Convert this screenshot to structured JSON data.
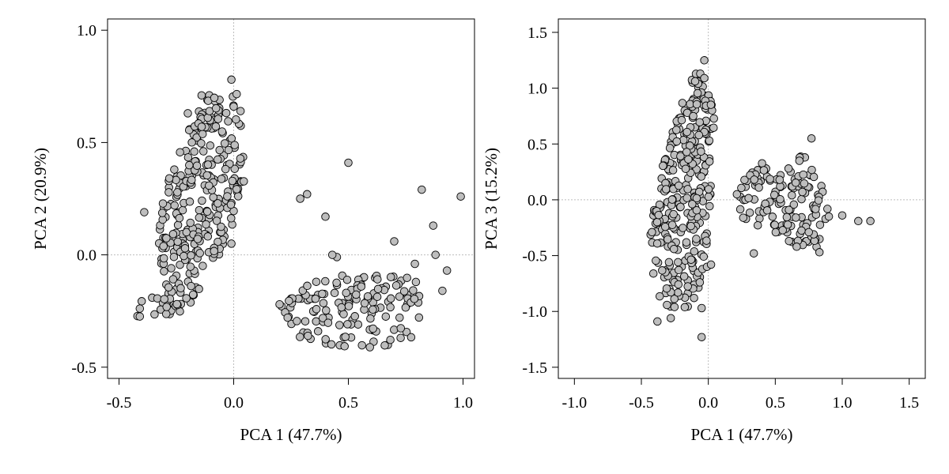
{
  "chart_data": [
    {
      "type": "scatter",
      "xlabel": "PCA 1 (47.7%)",
      "ylabel": "PCA 2 (20.9%)",
      "xlim": [
        -0.55,
        1.05
      ],
      "ylim": [
        -0.55,
        1.05
      ],
      "xticks": [
        -0.5,
        0.0,
        0.5,
        1.0
      ],
      "xtick_labels": [
        "-0.5",
        "0.0",
        "0.5",
        "1.0"
      ],
      "yticks": [
        -0.5,
        0.0,
        0.5,
        1.0
      ],
      "ytick_labels": [
        "-0.5",
        "0.0",
        "0.5",
        "1.0"
      ],
      "reference_lines": {
        "x": 0,
        "y": 0
      },
      "grid": false,
      "marker_fill": "#bebebe",
      "marker_edge": "#000000",
      "clusters": [
        {
          "shape": "polygon",
          "count": 300,
          "seed": 11,
          "region": [
            [
              -0.43,
              -0.28
            ],
            [
              -0.3,
              -0.3
            ],
            [
              -0.18,
              -0.22
            ],
            [
              -0.1,
              -0.05
            ],
            [
              -0.03,
              0.05
            ],
            [
              0.05,
              0.32
            ],
            [
              0.02,
              0.72
            ],
            [
              -0.13,
              0.72
            ],
            [
              -0.2,
              0.55
            ],
            [
              -0.3,
              0.32
            ],
            [
              -0.33,
              0.05
            ],
            [
              -0.3,
              -0.18
            ],
            [
              -0.42,
              -0.2
            ]
          ]
        },
        {
          "shape": "polygon",
          "count": 140,
          "seed": 23,
          "region": [
            [
              0.2,
              -0.2
            ],
            [
              0.33,
              -0.12
            ],
            [
              0.45,
              -0.08
            ],
            [
              0.6,
              -0.08
            ],
            [
              0.75,
              -0.1
            ],
            [
              0.85,
              -0.12
            ],
            [
              0.84,
              -0.32
            ],
            [
              0.72,
              -0.42
            ],
            [
              0.55,
              -0.42
            ],
            [
              0.3,
              -0.38
            ],
            [
              0.2,
              -0.25
            ]
          ]
        }
      ],
      "points": {
        "x": [
          -0.01,
          0.0,
          -0.14,
          -0.2,
          -0.39,
          0.5,
          0.32,
          0.29,
          0.4,
          0.82,
          0.99,
          0.87,
          0.88,
          0.7,
          0.79,
          0.45,
          0.43,
          0.36,
          0.93,
          0.91,
          0.2,
          0.03,
          -0.01
        ],
        "y": [
          0.78,
          0.66,
          0.71,
          0.63,
          0.19,
          0.41,
          0.27,
          0.25,
          0.17,
          0.29,
          0.26,
          0.13,
          0.0,
          0.06,
          -0.04,
          -0.01,
          0.0,
          -0.12,
          -0.07,
          -0.16,
          -0.22,
          0.64,
          0.05
        ]
      }
    },
    {
      "type": "scatter",
      "xlabel": "PCA 1 (47.7%)",
      "ylabel": "PCA 3 (15.2%)",
      "xlim": [
        -1.12,
        1.62
      ],
      "ylim": [
        -1.6,
        1.62
      ],
      "xticks": [
        -1.0,
        -0.5,
        0.0,
        0.5,
        1.0,
        1.5
      ],
      "xtick_labels": [
        "-1.0",
        "-0.5",
        "0.0",
        "0.5",
        "1.0",
        "1.5"
      ],
      "yticks": [
        -1.5,
        -1.0,
        -0.5,
        0.0,
        0.5,
        1.0,
        1.5
      ],
      "ytick_labels": [
        "-1.5",
        "-1.0",
        "-0.5",
        "0.0",
        "0.5",
        "1.0",
        "1.5"
      ],
      "reference_lines": {
        "x": 0,
        "y": 0
      },
      "grid": false,
      "marker_fill": "#bebebe",
      "marker_edge": "#000000",
      "clusters": [
        {
          "shape": "polygon",
          "count": 300,
          "seed": 37,
          "region": [
            [
              -0.44,
              -0.25
            ],
            [
              -0.36,
              -0.9
            ],
            [
              -0.25,
              -1.0
            ],
            [
              -0.1,
              -0.95
            ],
            [
              -0.02,
              -0.5
            ],
            [
              0.03,
              0.2
            ],
            [
              0.05,
              0.85
            ],
            [
              -0.08,
              1.15
            ],
            [
              -0.18,
              1.0
            ],
            [
              -0.3,
              0.5
            ],
            [
              -0.4,
              0.0
            ]
          ]
        },
        {
          "shape": "polygon",
          "count": 140,
          "seed": 53,
          "region": [
            [
              0.22,
              0.1
            ],
            [
              0.38,
              0.35
            ],
            [
              0.55,
              0.25
            ],
            [
              0.7,
              0.45
            ],
            [
              0.85,
              0.15
            ],
            [
              0.92,
              -0.15
            ],
            [
              0.8,
              -0.45
            ],
            [
              0.62,
              -0.38
            ],
            [
              0.45,
              -0.28
            ],
            [
              0.28,
              -0.2
            ],
            [
              0.2,
              -0.05
            ]
          ]
        }
      ],
      "points": {
        "x": [
          -0.03,
          -0.06,
          -0.03,
          -0.05,
          -0.38,
          -0.28,
          -0.05,
          -0.01,
          0.02,
          0.34,
          0.66,
          0.77,
          0.9,
          1.0,
          1.12,
          1.21,
          0.83,
          0.75,
          0.68,
          -0.41,
          -0.09
        ],
        "y": [
          1.25,
          1.13,
          1.09,
          -1.23,
          -1.09,
          -1.06,
          -0.97,
          -0.6,
          -0.58,
          -0.48,
          -0.42,
          0.55,
          -0.15,
          -0.14,
          -0.19,
          -0.19,
          -0.47,
          -0.29,
          0.35,
          -0.66,
          -0.35
        ]
      }
    }
  ]
}
